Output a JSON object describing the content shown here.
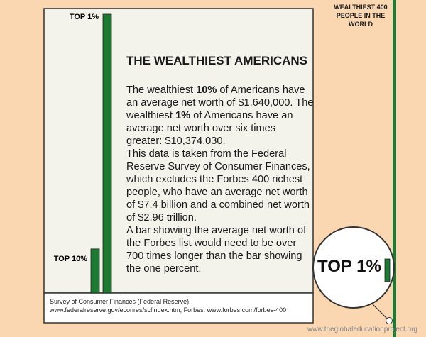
{
  "chart_data": {
    "type": "bar",
    "title": "THE WEALTHIEST AMERICANS",
    "categories": [
      "TOP 10%",
      "TOP 1%"
    ],
    "values": [
      1640000,
      10374030
    ],
    "color": "#1d7a32",
    "ylim": [
      0,
      10374030
    ]
  },
  "text": {
    "paragraph": [
      "The wealthiest ",
      "10%",
      " of Americans have an average net worth of $1,640,000. The wealthiest ",
      "1%",
      " of Americans have an average net worth over six times greater: $10,374,030."
    ],
    "paragraph2": "This data is taken from the Federal Reserve Survey of Consumer Finances, which excludes the Forbes 400 richest people, who have an average net worth of $7.4 billion and a combined net worth of $2.96 trillion.",
    "paragraph3": "A bar showing the average net worth of the Forbes list would need to be over 700 times longer than the bar showing the one percent.",
    "forbes_label": "WEALTHIEST 400 PEOPLE IN THE WORLD",
    "magnifier_label": "TOP 1%",
    "source": "Survey of Consumer Finances (Federal Reserve), www.federalreserve.gov/econres/scfindex.htm; Forbes: www.forbes.com/forbes-400",
    "footer": "www.theglobaleducationproject.org"
  }
}
